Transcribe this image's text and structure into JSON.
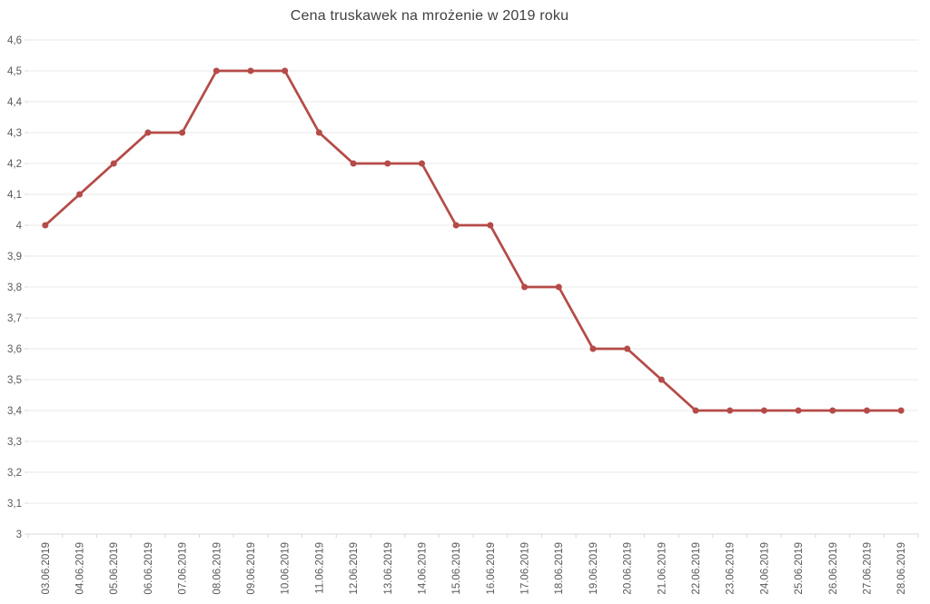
{
  "chart_data": {
    "type": "line",
    "title": "Cena truskawek na mrożenie w 2019 roku",
    "categories": [
      "03.06.2019",
      "04.06.2019",
      "05.06.2019",
      "06.06.2019",
      "07.06.2019",
      "08.06.2019",
      "09.06.2019",
      "10.06.2019",
      "11.06.2019",
      "12.06.2019",
      "13.06.2019",
      "14.06.2019",
      "15.06.2019",
      "16.06.2019",
      "17.06.2019",
      "18.06.2019",
      "19.06.2019",
      "20.06.2019",
      "21.06.2019",
      "22.06.2019",
      "23.06.2019",
      "24.06.2019",
      "25.06.2019",
      "26.06.2019",
      "27.06.2019",
      "28.06.2019"
    ],
    "values": [
      4.0,
      4.1,
      4.2,
      4.3,
      4.3,
      4.5,
      4.5,
      4.5,
      4.3,
      4.2,
      4.2,
      4.2,
      4.0,
      4.0,
      3.8,
      3.8,
      3.6,
      3.6,
      3.5,
      3.4,
      3.4,
      3.4,
      3.4,
      3.4,
      3.4,
      3.4
    ],
    "xlabel": "",
    "ylabel": "",
    "ylim": [
      3.0,
      4.6
    ],
    "y_tick_step": 0.1,
    "y_tick_labels": [
      "3",
      "3,1",
      "3,2",
      "3,3",
      "3,4",
      "3,5",
      "3,6",
      "3,7",
      "3,8",
      "3,9",
      "4",
      "4,1",
      "4,2",
      "4,3",
      "4,4",
      "4,5",
      "4,6"
    ],
    "grid": true,
    "legend": false,
    "marker": "circle",
    "colors": {
      "line": "#b54b48",
      "marker": "#b54b48",
      "gridline": "#e8e8e8",
      "axis_line": "#d8d8d8",
      "tick": "#d8d8d8",
      "axis_label": "#595959",
      "title": "#3f3f3f",
      "background": "#ffffff"
    }
  }
}
